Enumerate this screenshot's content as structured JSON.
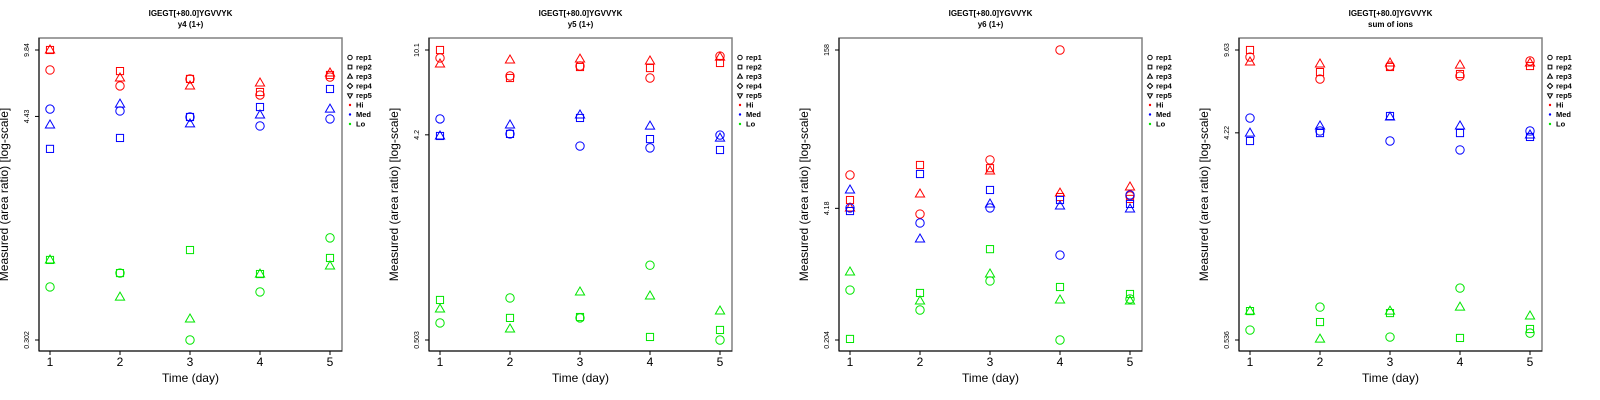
{
  "legend": {
    "shapes": [
      {
        "label": "rep1",
        "shape": "circle"
      },
      {
        "label": "rep2",
        "shape": "square"
      },
      {
        "label": "rep3",
        "shape": "triangle-up"
      },
      {
        "label": "rep4",
        "shape": "diamond"
      },
      {
        "label": "rep5",
        "shape": "triangle-down"
      }
    ],
    "groups": [
      {
        "label": "Hi",
        "color": "#ff0000"
      },
      {
        "label": "Med",
        "color": "#0000ff"
      },
      {
        "label": "Lo",
        "color": "#00e600"
      }
    ]
  },
  "chart_data": [
    {
      "type": "scatter",
      "title": "IGEGT[+80.0]YGVVYK",
      "subtitle": "y4 (1+)",
      "xlabel": "Time (day)",
      "ylabel": "Measured (area ratio) [log-scale]",
      "yscale": "log",
      "x_ticks": [
        "1",
        "2",
        "3",
        "4",
        "5"
      ],
      "y_ticks": [
        {
          "value": 9.84,
          "label": "9.84"
        },
        {
          "value": 4.43,
          "label": "4.43"
        },
        {
          "value": 0.302,
          "label": "0.302"
        }
      ],
      "ylim": [
        0.302,
        9.84
      ],
      "xlim": [
        1,
        5
      ],
      "series": [
        {
          "group": "Hi",
          "rep": "rep1",
          "x": [
            1,
            2,
            3,
            4,
            5
          ],
          "y": [
            7.74,
            6.39,
            6.95,
            5.73,
            7.11
          ]
        },
        {
          "group": "Hi",
          "rep": "rep2",
          "x": [
            1,
            2,
            3,
            4,
            5
          ],
          "y": [
            9.84,
            7.64,
            6.95,
            5.94,
            7.29
          ]
        },
        {
          "group": "Hi",
          "rep": "rep3",
          "x": [
            1,
            2,
            3,
            4,
            5
          ],
          "y": [
            9.84,
            7.03,
            6.39,
            6.62,
            7.47
          ]
        },
        {
          "group": "Med",
          "rep": "rep1",
          "x": [
            1,
            2,
            3,
            4,
            5
          ],
          "y": [
            4.84,
            4.73,
            4.4,
            3.95,
            4.3
          ]
        },
        {
          "group": "Med",
          "rep": "rep2",
          "x": [
            1,
            2,
            3,
            4,
            5
          ],
          "y": [
            3.0,
            3.42,
            4.4,
            4.96,
            6.16
          ]
        },
        {
          "group": "Med",
          "rep": "rep3",
          "x": [
            1,
            2,
            3,
            4,
            5
          ],
          "y": [
            4.0,
            5.14,
            4.05,
            4.51,
            4.84
          ]
        },
        {
          "group": "Lo",
          "rep": "rep1",
          "x": [
            1,
            2,
            3,
            4,
            5
          ],
          "y": [
            0.571,
            0.675,
            0.302,
            0.538,
            1.03
          ]
        },
        {
          "group": "Lo",
          "rep": "rep2",
          "x": [
            1,
            2,
            3,
            4,
            5
          ],
          "y": [
            0.79,
            0.675,
            0.89,
            0.667,
            0.809
          ]
        },
        {
          "group": "Lo",
          "rep": "rep3",
          "x": [
            1,
            2,
            3,
            4,
            5
          ],
          "y": [
            0.79,
            0.506,
            0.389,
            0.667,
            0.735
          ]
        }
      ]
    },
    {
      "type": "scatter",
      "title": "IGEGT[+80.0]YGVVYK",
      "subtitle": "y5 (1+)",
      "xlabel": "Time (day)",
      "ylabel": "Measured (area ratio) [log-scale]",
      "yscale": "log",
      "x_ticks": [
        "1",
        "2",
        "3",
        "4",
        "5"
      ],
      "y_ticks": [
        {
          "value": 10.1,
          "label": "10.1"
        },
        {
          "value": 4.2,
          "label": "4.2"
        },
        {
          "value": 0.503,
          "label": "0.503"
        }
      ],
      "ylim": [
        0.503,
        10.1
      ],
      "xlim": [
        1,
        5
      ],
      "series": [
        {
          "group": "Hi",
          "rep": "rep1",
          "x": [
            1,
            2,
            3,
            4,
            5
          ],
          "y": [
            9.3,
            7.72,
            8.56,
            7.56,
            9.49
          ]
        },
        {
          "group": "Hi",
          "rep": "rep2",
          "x": [
            1,
            2,
            3,
            4,
            5
          ],
          "y": [
            10.1,
            7.56,
            8.47,
            8.38,
            8.83
          ]
        },
        {
          "group": "Hi",
          "rep": "rep3",
          "x": [
            1,
            2,
            3,
            4,
            5
          ],
          "y": [
            8.74,
            9.11,
            9.2,
            9.02,
            9.39
          ]
        },
        {
          "group": "Med",
          "rep": "rep1",
          "x": [
            1,
            2,
            3,
            4,
            5
          ],
          "y": [
            4.95,
            4.24,
            3.74,
            3.67,
            4.19
          ]
        },
        {
          "group": "Med",
          "rep": "rep2",
          "x": [
            1,
            2,
            3,
            4,
            5
          ],
          "y": [
            4.15,
            4.24,
            5.0,
            4.02,
            3.59
          ]
        },
        {
          "group": "Med",
          "rep": "rep3",
          "x": [
            1,
            2,
            3,
            4,
            5
          ],
          "y": [
            4.15,
            4.65,
            5.16,
            4.6,
            4.06
          ]
        },
        {
          "group": "Lo",
          "rep": "rep1",
          "x": [
            1,
            2,
            3,
            4,
            5
          ],
          "y": [
            0.6,
            0.777,
            0.632,
            1.09,
            0.503
          ]
        },
        {
          "group": "Lo",
          "rep": "rep2",
          "x": [
            1,
            2,
            3,
            4,
            5
          ],
          "y": [
            0.761,
            0.632,
            0.638,
            0.519,
            0.558
          ]
        },
        {
          "group": "Lo",
          "rep": "rep3",
          "x": [
            1,
            2,
            3,
            4,
            5
          ],
          "y": [
            0.693,
            0.564,
            0.827,
            0.793,
            0.679
          ]
        }
      ]
    },
    {
      "type": "scatter",
      "title": "IGEGT[+80.0]YGVVYK",
      "subtitle": "y6 (1+)",
      "xlabel": "Time (day)",
      "ylabel": "Measured (area ratio) [log-scale]",
      "yscale": "log",
      "x_ticks": [
        "1",
        "2",
        "3",
        "4",
        "5"
      ],
      "y_ticks": [
        {
          "value": 158,
          "label": "158"
        },
        {
          "value": 4.18,
          "label": "4.18"
        },
        {
          "value": 0.204,
          "label": "0.204"
        }
      ],
      "ylim": [
        0.204,
        158
      ],
      "xlim": [
        1,
        5
      ],
      "series": [
        {
          "group": "Hi",
          "rep": "rep1",
          "x": [
            1,
            2,
            3,
            4,
            5
          ],
          "y": [
            8.98,
            3.67,
            12.7,
            158,
            5.55
          ]
        },
        {
          "group": "Hi",
          "rep": "rep2",
          "x": [
            1,
            2,
            3,
            4,
            5
          ],
          "y": [
            5.06,
            11.3,
            10.5,
            5.42,
            5.19
          ]
        },
        {
          "group": "Hi",
          "rep": "rep3",
          "x": [
            1,
            2,
            3,
            4,
            5
          ],
          "y": [
            4.22,
            5.81,
            9.85,
            5.94,
            6.82
          ]
        },
        {
          "group": "Med",
          "rep": "rep1",
          "x": [
            1,
            2,
            3,
            4,
            5
          ],
          "y": [
            4.22,
            2.99,
            4.22,
            1.43,
            5.68
          ]
        },
        {
          "group": "Med",
          "rep": "rep2",
          "x": [
            1,
            2,
            3,
            4,
            5
          ],
          "y": [
            3.93,
            9.19,
            6.37,
            5.06,
            4.62
          ]
        },
        {
          "group": "Med",
          "rep": "rep3",
          "x": [
            1,
            2,
            3,
            4,
            5
          ],
          "y": [
            6.37,
            2.07,
            4.62,
            4.41,
            4.12
          ]
        },
        {
          "group": "Lo",
          "rep": "rep1",
          "x": [
            1,
            2,
            3,
            4,
            5
          ],
          "y": [
            0.642,
            0.406,
            0.79,
            0.204,
            0.523
          ]
        },
        {
          "group": "Lo",
          "rep": "rep2",
          "x": [
            1,
            2,
            3,
            4,
            5
          ],
          "y": [
            0.209,
            0.6,
            1.64,
            0.688,
            0.586
          ]
        },
        {
          "group": "Lo",
          "rep": "rep3",
          "x": [
            1,
            2,
            3,
            4,
            5
          ],
          "y": [
            0.971,
            0.499,
            0.927,
            0.511,
            0.499
          ]
        }
      ]
    },
    {
      "type": "scatter",
      "title": "IGEGT[+80.0]YGVVYK",
      "subtitle": "sum of ions",
      "xlabel": "Time (day)",
      "ylabel": "Measured (area ratio) [log-scale]",
      "yscale": "log",
      "x_ticks": [
        "1",
        "2",
        "3",
        "4",
        "5"
      ],
      "y_ticks": [
        {
          "value": 9.63,
          "label": "9.63"
        },
        {
          "value": 4.22,
          "label": "4.22"
        },
        {
          "value": 0.536,
          "label": "0.536"
        }
      ],
      "ylim": [
        0.536,
        9.63
      ],
      "xlim": [
        1,
        5
      ],
      "series": [
        {
          "group": "Hi",
          "rep": "rep1",
          "x": [
            1,
            2,
            3,
            4,
            5
          ],
          "y": [
            8.98,
            7.21,
            8.21,
            7.43,
            8.63
          ]
        },
        {
          "group": "Hi",
          "rep": "rep2",
          "x": [
            1,
            2,
            3,
            4,
            5
          ],
          "y": [
            9.63,
            7.73,
            8.13,
            7.58,
            8.21
          ]
        },
        {
          "group": "Hi",
          "rep": "rep3",
          "x": [
            1,
            2,
            3,
            4,
            5
          ],
          "y": [
            8.55,
            8.38,
            8.46,
            8.29,
            8.46
          ]
        },
        {
          "group": "Med",
          "rep": "rep1",
          "x": [
            1,
            2,
            3,
            4,
            5
          ],
          "y": [
            4.89,
            4.3,
            3.89,
            3.56,
            4.3
          ]
        },
        {
          "group": "Med",
          "rep": "rep2",
          "x": [
            1,
            2,
            3,
            4,
            5
          ],
          "y": [
            3.89,
            4.21,
            4.99,
            4.21,
            4.05
          ]
        },
        {
          "group": "Med",
          "rep": "rep3",
          "x": [
            1,
            2,
            3,
            4,
            5
          ],
          "y": [
            4.21,
            4.52,
            4.94,
            4.52,
            4.13
          ]
        },
        {
          "group": "Lo",
          "rep": "rep1",
          "x": [
            1,
            2,
            3,
            4,
            5
          ],
          "y": [
            0.592,
            0.744,
            0.552,
            0.899,
            0.574
          ]
        },
        {
          "group": "Lo",
          "rep": "rep2",
          "x": [
            1,
            2,
            3,
            4,
            5
          ],
          "y": [
            0.715,
            0.641,
            0.701,
            0.547,
            0.598
          ]
        },
        {
          "group": "Lo",
          "rep": "rep3",
          "x": [
            1,
            2,
            3,
            4,
            5
          ],
          "y": [
            0.715,
            0.541,
            0.715,
            0.744,
            0.681
          ]
        }
      ]
    }
  ]
}
